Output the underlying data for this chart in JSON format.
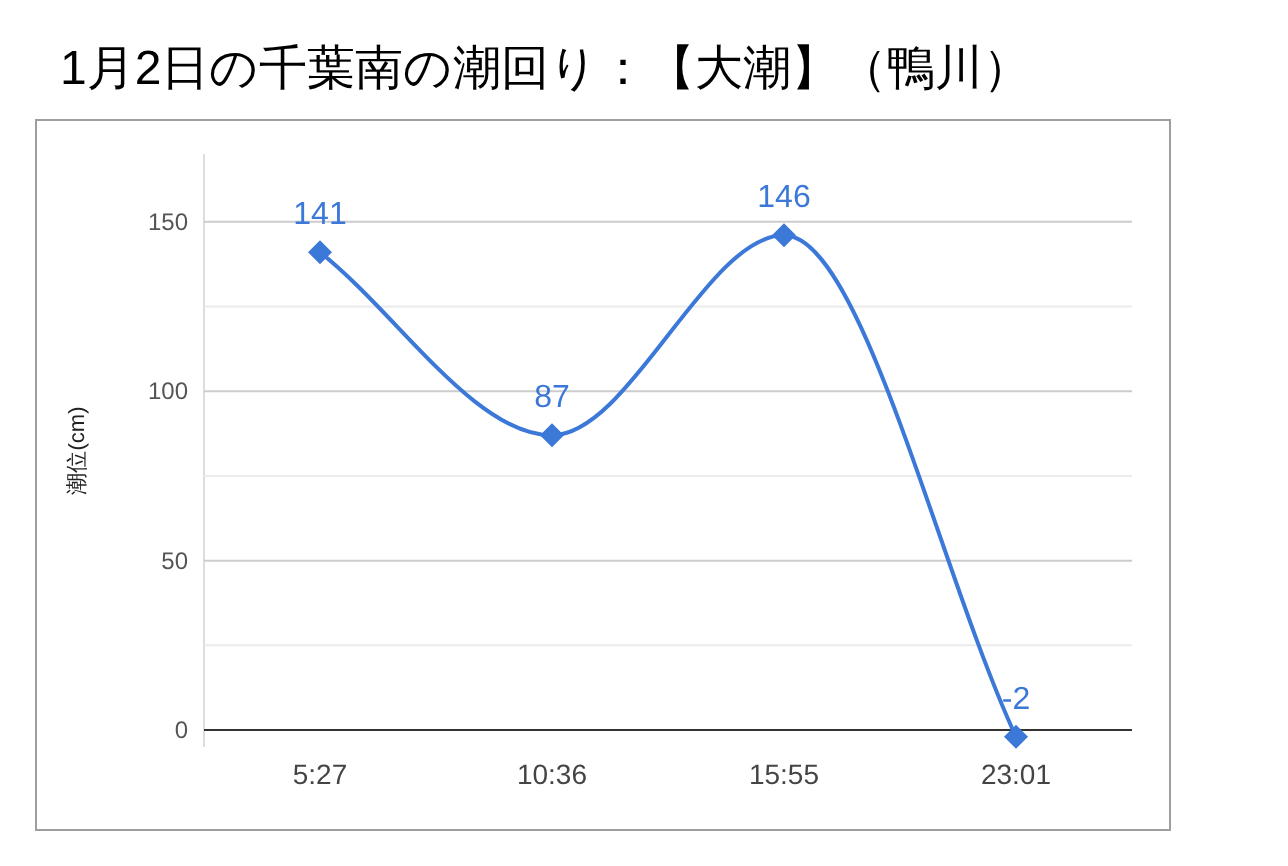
{
  "chart_data": {
    "type": "line",
    "title": "1月2日の千葉南の潮回り：【大潮】（鴨川）",
    "ylabel": "潮位(cm)",
    "categories": [
      "5:27",
      "10:36",
      "15:55",
      "23:01"
    ],
    "series": [
      {
        "color": "#3c78d8",
        "values": [
          141,
          87,
          146,
          -2
        ]
      }
    ],
    "ylim": [
      -5,
      170
    ],
    "yticks": [
      0,
      {
        "value": 25,
        "label": null
      },
      50,
      {
        "value": 75,
        "label": null
      },
      100,
      {
        "value": 125,
        "label": null
      },
      150
    ],
    "grid": "y",
    "marker": "diamond",
    "line_style": "solid",
    "data_labels": true
  }
}
